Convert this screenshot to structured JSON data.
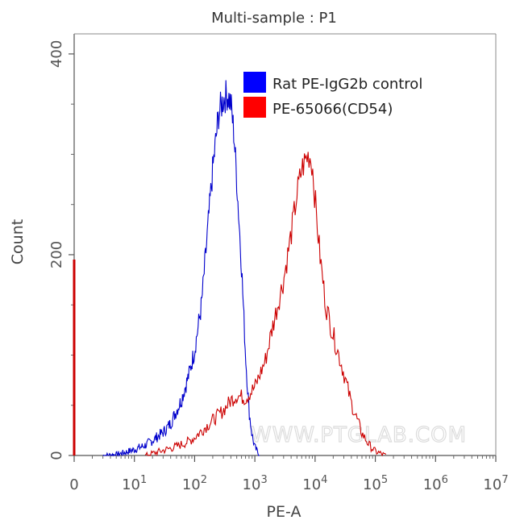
{
  "chart_data": {
    "type": "area",
    "title": "Multi-sample : P1",
    "xlabel": "PE-A",
    "ylabel": "Count",
    "x_scale": "log",
    "xlim": [
      1,
      10000000
    ],
    "ylim": [
      0,
      420
    ],
    "x_ticks": [
      {
        "value": 1,
        "label": "0",
        "exp": ""
      },
      {
        "value": 10,
        "label": "10",
        "exp": "1"
      },
      {
        "value": 100,
        "label": "10",
        "exp": "2"
      },
      {
        "value": 1000,
        "label": "10",
        "exp": "3"
      },
      {
        "value": 10000,
        "label": "10",
        "exp": "4"
      },
      {
        "value": 100000,
        "label": "10",
        "exp": "5"
      },
      {
        "value": 1000000,
        "label": "10",
        "exp": "6"
      },
      {
        "value": 10000000,
        "label": "10",
        "exp": "7"
      }
    ],
    "y_ticks": [
      {
        "value": 0,
        "label": "0"
      },
      {
        "value": 200,
        "label": "200"
      },
      {
        "value": 400,
        "label": "400"
      }
    ],
    "legend": {
      "position": "top-right",
      "entries": [
        {
          "name": "Rat PE-IgG2b control",
          "color": "#0000ff"
        },
        {
          "name": "PE-65066(CD54)",
          "color": "#ff0000"
        }
      ]
    },
    "watermark": "WWW.PTGLAB.COM",
    "series": [
      {
        "name": "Rat PE-IgG2b control",
        "color": "#0000cc",
        "x": [
          3,
          5,
          7,
          10,
          15,
          20,
          30,
          40,
          60,
          80,
          100,
          130,
          160,
          200,
          250,
          300,
          350,
          400,
          450,
          500,
          600,
          700,
          800,
          900,
          1000,
          1200
        ],
        "y": [
          0,
          1,
          3,
          6,
          10,
          15,
          23,
          32,
          55,
          80,
          105,
          150,
          215,
          285,
          340,
          355,
          360,
          350,
          320,
          275,
          190,
          100,
          45,
          20,
          8,
          0
        ]
      },
      {
        "name": "PE-65066(CD54)",
        "color": "#cc0000",
        "x": [
          15,
          30,
          50,
          80,
          100,
          150,
          200,
          300,
          400,
          500,
          700,
          1000,
          1500,
          2000,
          3000,
          4000,
          5000,
          6000,
          7000,
          8000,
          9000,
          10000,
          12000,
          15000,
          20000,
          30000,
          40000,
          60000,
          80000,
          100000,
          150000
        ],
        "y": [
          0,
          5,
          9,
          14,
          18,
          28,
          35,
          45,
          55,
          60,
          57,
          68,
          95,
          130,
          175,
          220,
          260,
          285,
          295,
          300,
          290,
          255,
          200,
          150,
          120,
          82,
          52,
          22,
          10,
          4,
          0
        ]
      }
    ]
  }
}
